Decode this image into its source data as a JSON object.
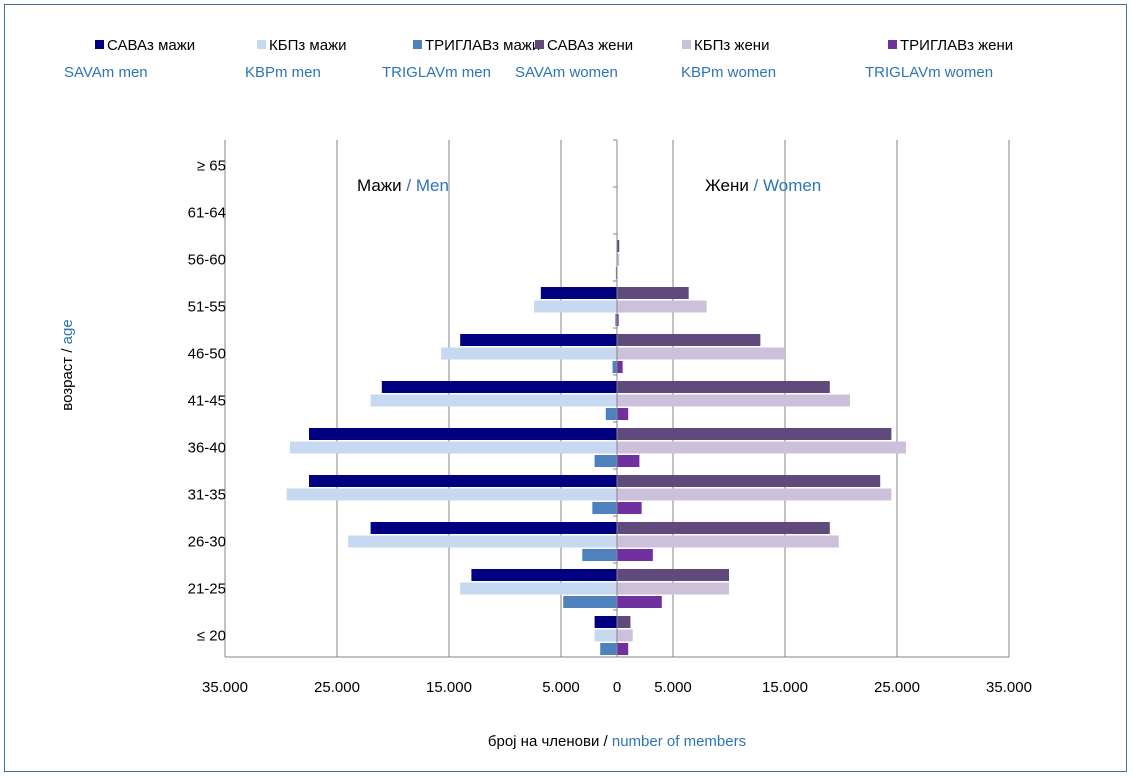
{
  "chart_data": {
    "type": "bar",
    "orientation": "horizontal-population-pyramid",
    "categories": [
      "≤ 20",
      "21-25",
      "26-30",
      "31-35",
      "36-40",
      "41-45",
      "46-50",
      "51-55",
      "56-60",
      "61-64",
      "≥ 65"
    ],
    "series": [
      {
        "name": "САВАз мажи",
        "name_en": "SAVAm men",
        "side": "men",
        "color": "#000080",
        "values": [
          2000,
          13000,
          22000,
          27500,
          27500,
          21000,
          14000,
          6800,
          0,
          0,
          0
        ]
      },
      {
        "name": "КБПз мажи",
        "name_en": "KBPm men",
        "side": "men",
        "color": "#c6d9f1",
        "values": [
          2000,
          14000,
          24000,
          29500,
          29200,
          22000,
          15700,
          7400,
          0,
          0,
          0
        ]
      },
      {
        "name": "ТРИГЛАВз мажи",
        "name_en": "TRIGLAVm men",
        "side": "men",
        "color": "#4f81bd",
        "values": [
          1500,
          4800,
          3100,
          2200,
          2000,
          1000,
          400,
          150,
          100,
          0,
          0
        ]
      },
      {
        "name": "САВАз жени",
        "name_en": "SAVAm women",
        "side": "women",
        "color": "#604a7b",
        "values": [
          1200,
          10000,
          19000,
          23500,
          24500,
          19000,
          12800,
          6400,
          200,
          0,
          0
        ]
      },
      {
        "name": "КБПз жени",
        "name_en": "KBPm women",
        "side": "women",
        "color": "#ccc0da",
        "values": [
          1400,
          10000,
          19800,
          24500,
          25800,
          20800,
          15000,
          8000,
          200,
          0,
          0
        ]
      },
      {
        "name": "ТРИГЛАВз жени",
        "name_en": "TRIGLAVm women",
        "side": "women",
        "color": "#7030a0",
        "values": [
          1000,
          4000,
          3200,
          2200,
          2000,
          1000,
          500,
          150,
          0,
          0,
          0
        ]
      }
    ],
    "xlim": [
      -35000,
      35000
    ],
    "x_ticks": [
      -35000,
      -25000,
      -15000,
      -5000,
      0,
      5000,
      15000,
      25000,
      35000
    ],
    "x_tick_labels": [
      "35.000",
      "25.000",
      "15.000",
      "5.000",
      "0",
      "5.000",
      "15.000",
      "25.000",
      "35.000"
    ],
    "xlabel": "број на членови",
    "xlabel_en": "number of members",
    "ylabel": "возраст",
    "ylabel_en": "age",
    "side_labels": {
      "men": "Мажи",
      "men_en": "Men",
      "women": "Жени",
      "women_en": "Women"
    },
    "grid": "vertical",
    "legend": "top"
  }
}
